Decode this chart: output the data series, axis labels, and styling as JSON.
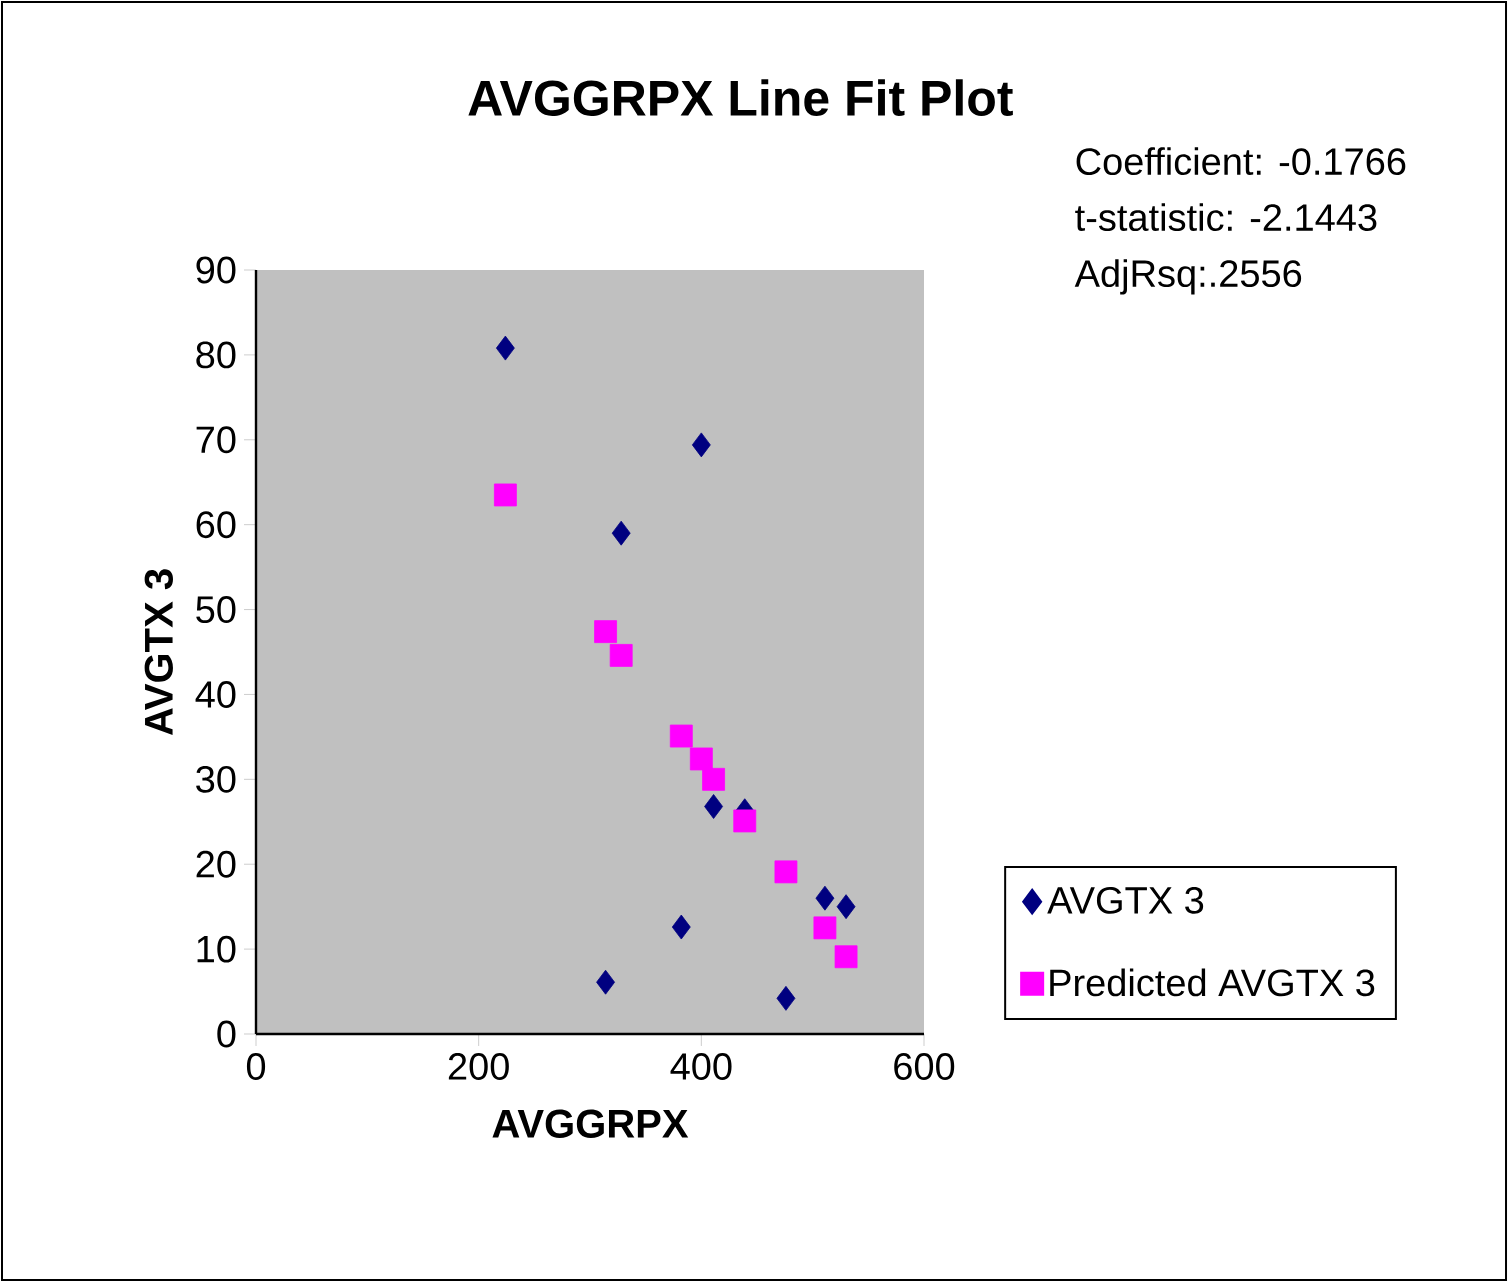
{
  "chart_data": {
    "type": "scatter",
    "title": "AVGGRPX Line Fit  Plot",
    "xlabel": "AVGGRPX",
    "ylabel": "AVGTX 3",
    "annotations": [
      "Coefficient: -0.1766",
      "t-statistic: -2.1443",
      "AdjRsq:.2556"
    ],
    "x": [
      224,
      314,
      328,
      382,
      400,
      411,
      439,
      476,
      511,
      530
    ],
    "series": [
      {
        "name": "AVGTX 3",
        "color": "#000080",
        "marker": "diamond",
        "values": [
          80.8,
          6.1,
          59.0,
          12.6,
          69.4,
          26.8,
          26.3,
          4.2,
          16.0,
          15.0
        ]
      },
      {
        "name": "Predicted AVGTX 3",
        "color": "#ff00ff",
        "marker": "square",
        "values": [
          63.5,
          47.4,
          44.6,
          35.1,
          32.4,
          30.0,
          25.1,
          19.1,
          12.5,
          9.1
        ]
      }
    ],
    "xlim": [
      0,
      600
    ],
    "xticks": [
      0,
      200,
      400,
      600
    ],
    "ylim": [
      0,
      90
    ],
    "yticks": [
      0,
      10,
      20,
      30,
      40,
      50,
      60,
      70,
      80,
      90
    ],
    "grid": false,
    "legend": "bottom right"
  }
}
